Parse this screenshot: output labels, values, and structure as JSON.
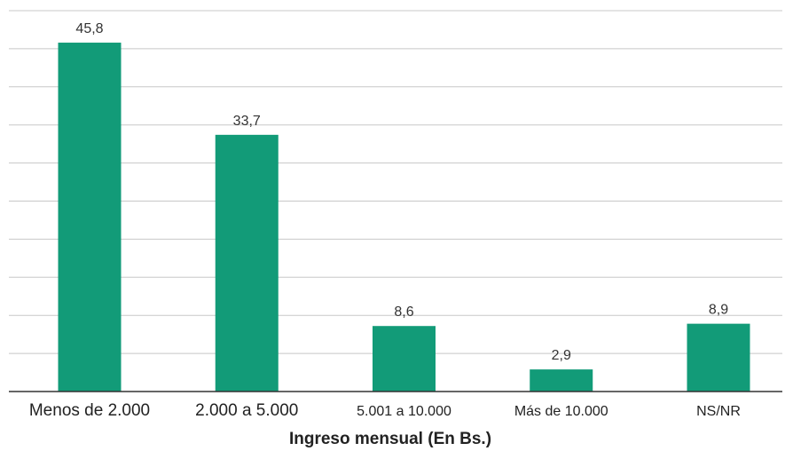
{
  "chart_data": {
    "type": "bar",
    "categories": [
      "Menos de 2.000",
      "2.000 a 5.000",
      "5.001 a 10.000",
      "Más de 10.000",
      "NS/NR"
    ],
    "values": [
      45.8,
      33.7,
      8.6,
      2.9,
      8.9
    ],
    "value_labels": [
      "45,8",
      "33,7",
      "8,6",
      "2,9",
      "8,9"
    ],
    "title": "",
    "xlabel": "Ingreso mensual (En Bs.)",
    "ylabel": "",
    "ylim": [
      0,
      50
    ],
    "grid": true,
    "bar_color": "#129b78",
    "legend": "none"
  }
}
